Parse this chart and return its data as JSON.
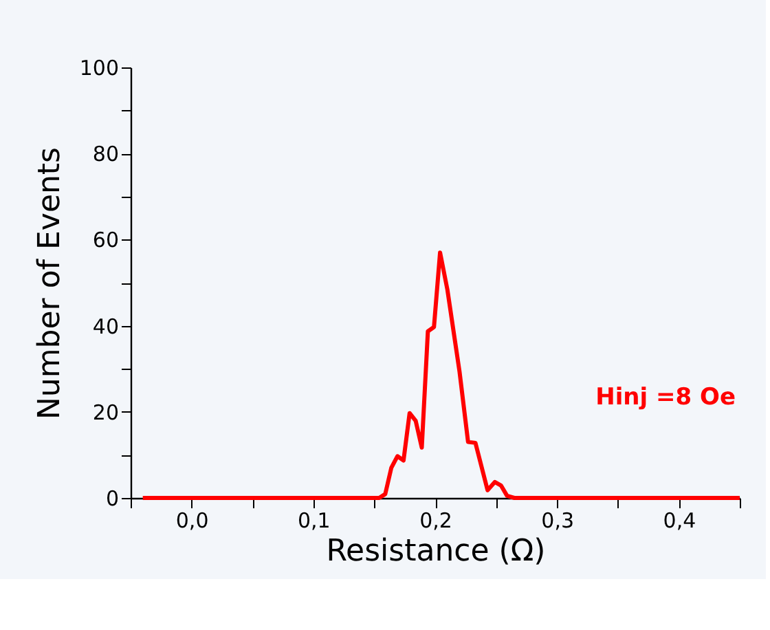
{
  "chart_data": {
    "type": "line",
    "xlabel": "Resistance (Ω)",
    "ylabel": "Number of Events",
    "annotations": [
      "Hinj =8 Oe"
    ],
    "series": [
      {
        "color": "#ff0000",
        "x": [
          -0.04,
          0.13,
          0.154,
          0.159,
          0.164,
          0.169,
          0.174,
          0.179,
          0.184,
          0.189,
          0.194,
          0.199,
          0.204,
          0.21,
          0.22,
          0.227,
          0.233,
          0.243,
          0.249,
          0.254,
          0.259,
          0.265,
          0.45
        ],
        "values": [
          0,
          0,
          0,
          0.9,
          7,
          9.7,
          8.7,
          19.7,
          17.9,
          11.7,
          38.7,
          39.7,
          57,
          48.4,
          29.3,
          13,
          12.8,
          1.8,
          3.7,
          2.9,
          0.5,
          0,
          0
        ]
      }
    ],
    "xlim": [
      -0.05,
      0.45
    ],
    "ylim": [
      0,
      100
    ],
    "xticks": [
      {
        "value": -0.05,
        "label": null
      },
      {
        "value": 0,
        "label": "0,0"
      },
      {
        "value": 0.05,
        "label": null
      },
      {
        "value": 0.1,
        "label": "0,1"
      },
      {
        "value": 0.15,
        "label": null
      },
      {
        "value": 0.2,
        "label": "0,2"
      },
      {
        "value": 0.25,
        "label": null
      },
      {
        "value": 0.3,
        "label": "0,3"
      },
      {
        "value": 0.35,
        "label": null
      },
      {
        "value": 0.4,
        "label": "0,4"
      },
      {
        "value": 0.45,
        "label": null
      }
    ],
    "yticks": [
      0,
      {
        "value": 10,
        "label": null
      },
      20,
      {
        "value": 30,
        "label": null
      },
      40,
      {
        "value": 50,
        "label": null
      },
      60,
      {
        "value": 70,
        "label": null
      },
      80,
      {
        "value": 90,
        "label": null
      },
      100
    ],
    "grid": false,
    "legend": false,
    "marker": "none",
    "line_style": "solid"
  }
}
